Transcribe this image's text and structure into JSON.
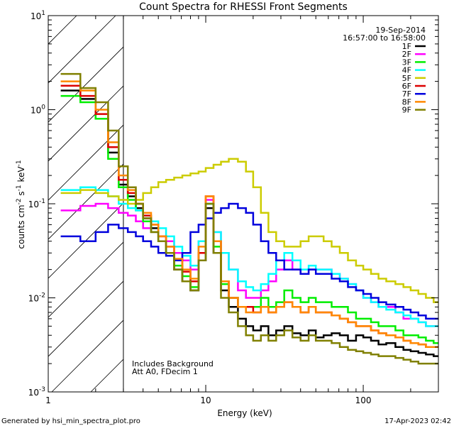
{
  "chart_data": {
    "type": "line",
    "title": "Count Spectra for RHESSI Front Segments",
    "xlabel": "Energy (keV)",
    "ylabel_parts": {
      "base": "counts cm",
      "sup1": "-2",
      "mid1": " s",
      "sup2": "-1",
      "mid2": " keV",
      "sup3": "-1"
    },
    "xscale": "log",
    "yscale": "log",
    "xlim": [
      1,
      300
    ],
    "ylim": [
      0.001,
      10
    ],
    "x_ticks": [
      {
        "value": 1,
        "label": "1"
      },
      {
        "value": 10,
        "label": "10"
      },
      {
        "value": 100,
        "label": "100"
      }
    ],
    "y_ticks": [
      {
        "value": 10,
        "base": "10",
        "exp": "1"
      },
      {
        "value": 1,
        "base": "10",
        "exp": "0"
      },
      {
        "value": 0.1,
        "base": "10",
        "exp": "-1"
      },
      {
        "value": 0.01,
        "base": "10",
        "exp": "-2"
      },
      {
        "value": 0.001,
        "base": "10",
        "exp": "-3"
      }
    ],
    "hatched_region_xmax": 3,
    "legend": {
      "position": "top-right",
      "date": "19-Sep-2014",
      "time_range": "16:57:00 to 16:58:00"
    },
    "annotations": [
      "Includes Background",
      "Att A0, FDecim 1"
    ],
    "energy_bins": [
      1.2,
      1.6,
      2.0,
      2.4,
      2.8,
      3.2,
      3.6,
      4.0,
      4.5,
      5.0,
      5.6,
      6.3,
      7.1,
      8.0,
      9.0,
      10.0,
      11.2,
      12.5,
      14.0,
      16.0,
      18.0,
      20.0,
      22.4,
      25.0,
      28.0,
      31.5,
      35.5,
      40.0,
      45.0,
      50.0,
      56.0,
      63.0,
      71.0,
      80.0,
      90.0,
      100.0,
      112.0,
      125.0,
      140.0,
      160.0,
      180.0,
      200.0,
      224.0,
      250.0,
      280.0,
      300.0
    ],
    "series": [
      {
        "name": "1F",
        "color": "#000000",
        "values": [
          1.6,
          1.3,
          0.8,
          0.35,
          0.16,
          0.12,
          0.09,
          0.07,
          0.055,
          0.04,
          0.03,
          0.02,
          0.015,
          0.012,
          0.025,
          0.09,
          0.03,
          0.012,
          0.008,
          0.006,
          0.005,
          0.0045,
          0.005,
          0.004,
          0.0045,
          0.005,
          0.0042,
          0.004,
          0.0045,
          0.0038,
          0.004,
          0.0042,
          0.004,
          0.0035,
          0.004,
          0.0038,
          0.0035,
          0.0032,
          0.0033,
          0.003,
          0.0028,
          0.0027,
          0.0026,
          0.0025,
          0.0024
        ]
      },
      {
        "name": "2F",
        "color": "#ff00ff",
        "values": [
          0.085,
          0.095,
          0.1,
          0.09,
          0.08,
          0.075,
          0.065,
          0.055,
          0.05,
          0.045,
          0.04,
          0.03,
          0.025,
          0.02,
          0.04,
          0.11,
          0.05,
          0.03,
          0.02,
          0.012,
          0.01,
          0.01,
          0.012,
          0.015,
          0.02,
          0.025,
          0.02,
          0.018,
          0.02,
          0.02,
          0.02,
          0.018,
          0.016,
          0.014,
          0.012,
          0.01,
          0.009,
          0.008,
          0.008,
          0.007,
          0.006,
          0.006,
          0.0055,
          0.005,
          0.005
        ]
      },
      {
        "name": "3F",
        "color": "#00ee00",
        "values": [
          1.4,
          1.2,
          0.8,
          0.3,
          0.15,
          0.11,
          0.085,
          0.065,
          0.05,
          0.04,
          0.03,
          0.022,
          0.017,
          0.013,
          0.03,
          0.1,
          0.035,
          0.014,
          0.01,
          0.008,
          0.008,
          0.008,
          0.01,
          0.008,
          0.009,
          0.012,
          0.01,
          0.009,
          0.01,
          0.009,
          0.009,
          0.008,
          0.008,
          0.007,
          0.006,
          0.006,
          0.0055,
          0.005,
          0.005,
          0.0045,
          0.004,
          0.004,
          0.0038,
          0.0035,
          0.0033
        ]
      },
      {
        "name": "4F",
        "color": "#00ffff",
        "values": [
          0.14,
          0.15,
          0.14,
          0.12,
          0.1,
          0.09,
          0.085,
          0.075,
          0.065,
          0.055,
          0.045,
          0.035,
          0.028,
          0.022,
          0.04,
          0.1,
          0.05,
          0.03,
          0.02,
          0.015,
          0.013,
          0.012,
          0.014,
          0.018,
          0.025,
          0.03,
          0.025,
          0.02,
          0.022,
          0.02,
          0.02,
          0.018,
          0.016,
          0.014,
          0.012,
          0.01,
          0.009,
          0.008,
          0.0075,
          0.007,
          0.0065,
          0.006,
          0.0055,
          0.005,
          0.005
        ]
      },
      {
        "name": "5F",
        "color": "#cccc00",
        "values": [
          0.13,
          0.14,
          0.13,
          0.12,
          0.11,
          0.1,
          0.11,
          0.13,
          0.15,
          0.17,
          0.18,
          0.19,
          0.2,
          0.21,
          0.22,
          0.24,
          0.26,
          0.28,
          0.3,
          0.28,
          0.22,
          0.15,
          0.08,
          0.05,
          0.04,
          0.035,
          0.035,
          0.04,
          0.045,
          0.045,
          0.04,
          0.035,
          0.03,
          0.025,
          0.022,
          0.02,
          0.018,
          0.016,
          0.015,
          0.014,
          0.013,
          0.012,
          0.011,
          0.01,
          0.009
        ]
      },
      {
        "name": "6F",
        "color": "#dd0000",
        "values": [
          1.8,
          1.4,
          0.9,
          0.4,
          0.18,
          0.13,
          0.1,
          0.075,
          0.06,
          0.045,
          0.035,
          0.025,
          0.019,
          0.015,
          0.03,
          0.12,
          0.04,
          0.015,
          0.01,
          0.008,
          0.008,
          0.007,
          0.008,
          0.007,
          0.008,
          0.009,
          0.008,
          0.007,
          0.008,
          0.007,
          0.007,
          0.0065,
          0.006,
          0.0055,
          0.005,
          0.005,
          0.0045,
          0.0042,
          0.004,
          0.0038,
          0.0035,
          0.0033,
          0.0032,
          0.003,
          0.003
        ]
      },
      {
        "name": "7F",
        "color": "#0000dd",
        "values": [
          0.045,
          0.04,
          0.05,
          0.06,
          0.055,
          0.05,
          0.045,
          0.04,
          0.035,
          0.03,
          0.028,
          0.025,
          0.03,
          0.05,
          0.06,
          0.07,
          0.08,
          0.09,
          0.1,
          0.09,
          0.08,
          0.06,
          0.04,
          0.03,
          0.025,
          0.02,
          0.02,
          0.018,
          0.02,
          0.018,
          0.018,
          0.016,
          0.015,
          0.013,
          0.012,
          0.011,
          0.01,
          0.009,
          0.0085,
          0.008,
          0.0075,
          0.007,
          0.0065,
          0.006,
          0.006
        ]
      },
      {
        "name": "8F",
        "color": "#ff8800",
        "values": [
          2.0,
          1.6,
          1.0,
          0.45,
          0.2,
          0.14,
          0.1,
          0.08,
          0.06,
          0.045,
          0.035,
          0.026,
          0.02,
          0.016,
          0.035,
          0.12,
          0.04,
          0.015,
          0.01,
          0.008,
          0.007,
          0.007,
          0.008,
          0.007,
          0.008,
          0.009,
          0.008,
          0.007,
          0.008,
          0.007,
          0.007,
          0.0065,
          0.006,
          0.0055,
          0.005,
          0.005,
          0.0045,
          0.0042,
          0.004,
          0.0038,
          0.0035,
          0.0033,
          0.0032,
          0.003,
          0.003
        ]
      },
      {
        "name": "9F",
        "color": "#808000",
        "values": [
          2.4,
          1.7,
          1.2,
          0.6,
          0.25,
          0.15,
          0.1,
          0.07,
          0.05,
          0.04,
          0.03,
          0.02,
          0.015,
          0.012,
          0.025,
          0.1,
          0.03,
          0.01,
          0.007,
          0.005,
          0.004,
          0.0035,
          0.004,
          0.0035,
          0.004,
          0.0045,
          0.0038,
          0.0035,
          0.004,
          0.0035,
          0.0035,
          0.0033,
          0.003,
          0.0028,
          0.0027,
          0.0026,
          0.0025,
          0.0024,
          0.0024,
          0.0023,
          0.0022,
          0.0021,
          0.002,
          0.002,
          0.002
        ]
      }
    ]
  },
  "footer": {
    "generated_by": "Generated by hsi_min_spectra_plot.pro",
    "timestamp": "17-Apr-2023 02:42"
  }
}
